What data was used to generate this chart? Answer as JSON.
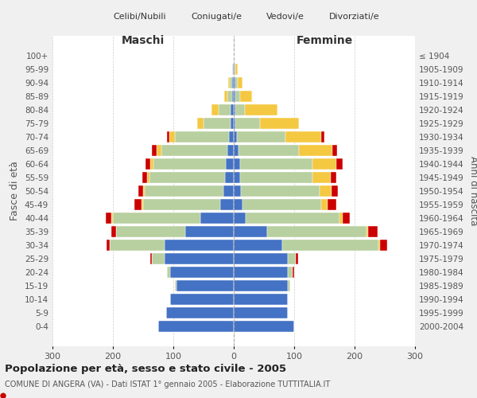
{
  "age_groups": [
    "0-4",
    "5-9",
    "10-14",
    "15-19",
    "20-24",
    "25-29",
    "30-34",
    "35-39",
    "40-44",
    "45-49",
    "50-54",
    "55-59",
    "60-64",
    "65-69",
    "70-74",
    "75-79",
    "80-84",
    "85-89",
    "90-94",
    "95-99",
    "100+"
  ],
  "birth_years": [
    "2000-2004",
    "1995-1999",
    "1990-1994",
    "1985-1989",
    "1980-1984",
    "1975-1979",
    "1970-1974",
    "1965-1969",
    "1960-1964",
    "1955-1959",
    "1950-1954",
    "1945-1949",
    "1940-1944",
    "1935-1939",
    "1930-1934",
    "1925-1929",
    "1920-1924",
    "1915-1919",
    "1910-1914",
    "1905-1909",
    "≤ 1904"
  ],
  "colors": {
    "celibe": "#4472c4",
    "coniugato": "#b8cfa0",
    "vedovo": "#f5c842",
    "divorziato": "#cc0000"
  },
  "maschi": {
    "celibe": [
      125,
      112,
      105,
      95,
      105,
      115,
      115,
      80,
      55,
      22,
      17,
      15,
      13,
      10,
      8,
      5,
      5,
      3,
      2,
      1,
      0
    ],
    "coniugato": [
      0,
      0,
      0,
      3,
      5,
      20,
      90,
      115,
      145,
      128,
      130,
      125,
      120,
      110,
      90,
      45,
      20,
      8,
      5,
      2,
      0
    ],
    "vedovo": [
      0,
      0,
      0,
      0,
      0,
      0,
      0,
      0,
      2,
      2,
      3,
      3,
      5,
      8,
      8,
      10,
      12,
      5,
      2,
      0,
      0
    ],
    "divorziato": [
      0,
      0,
      0,
      0,
      0,
      3,
      5,
      7,
      10,
      12,
      8,
      8,
      8,
      8,
      5,
      0,
      0,
      0,
      0,
      0,
      0
    ]
  },
  "femmine": {
    "celibe": [
      100,
      90,
      90,
      90,
      90,
      90,
      80,
      55,
      20,
      15,
      12,
      10,
      10,
      8,
      5,
      3,
      3,
      2,
      2,
      1,
      0
    ],
    "coniugato": [
      0,
      0,
      0,
      3,
      8,
      12,
      160,
      165,
      155,
      130,
      130,
      120,
      120,
      100,
      80,
      40,
      15,
      8,
      4,
      2,
      0
    ],
    "vedovo": [
      0,
      0,
      0,
      0,
      0,
      0,
      2,
      3,
      5,
      10,
      20,
      30,
      40,
      55,
      60,
      65,
      55,
      20,
      8,
      3,
      0
    ],
    "divorziato": [
      0,
      0,
      0,
      0,
      2,
      5,
      12,
      15,
      12,
      15,
      10,
      10,
      10,
      8,
      5,
      0,
      0,
      0,
      0,
      0,
      0
    ]
  },
  "title": "Popolazione per età, sesso e stato civile - 2005",
  "subtitle": "COMUNE DI ANGERA (VA) - Dati ISTAT 1° gennaio 2005 - Elaborazione TUTTITALIA.IT",
  "xlim": 300,
  "ylabel_left": "Fasce di età",
  "ylabel_right": "Anni di nascita",
  "xlabel_maschi": "Maschi",
  "xlabel_femmine": "Femmine",
  "legend_labels": [
    "Celibi/Nubili",
    "Coniugati/e",
    "Vedovi/e",
    "Divorziati/e"
  ],
  "background_color": "#f0f0f0",
  "plot_bg": "#ffffff"
}
